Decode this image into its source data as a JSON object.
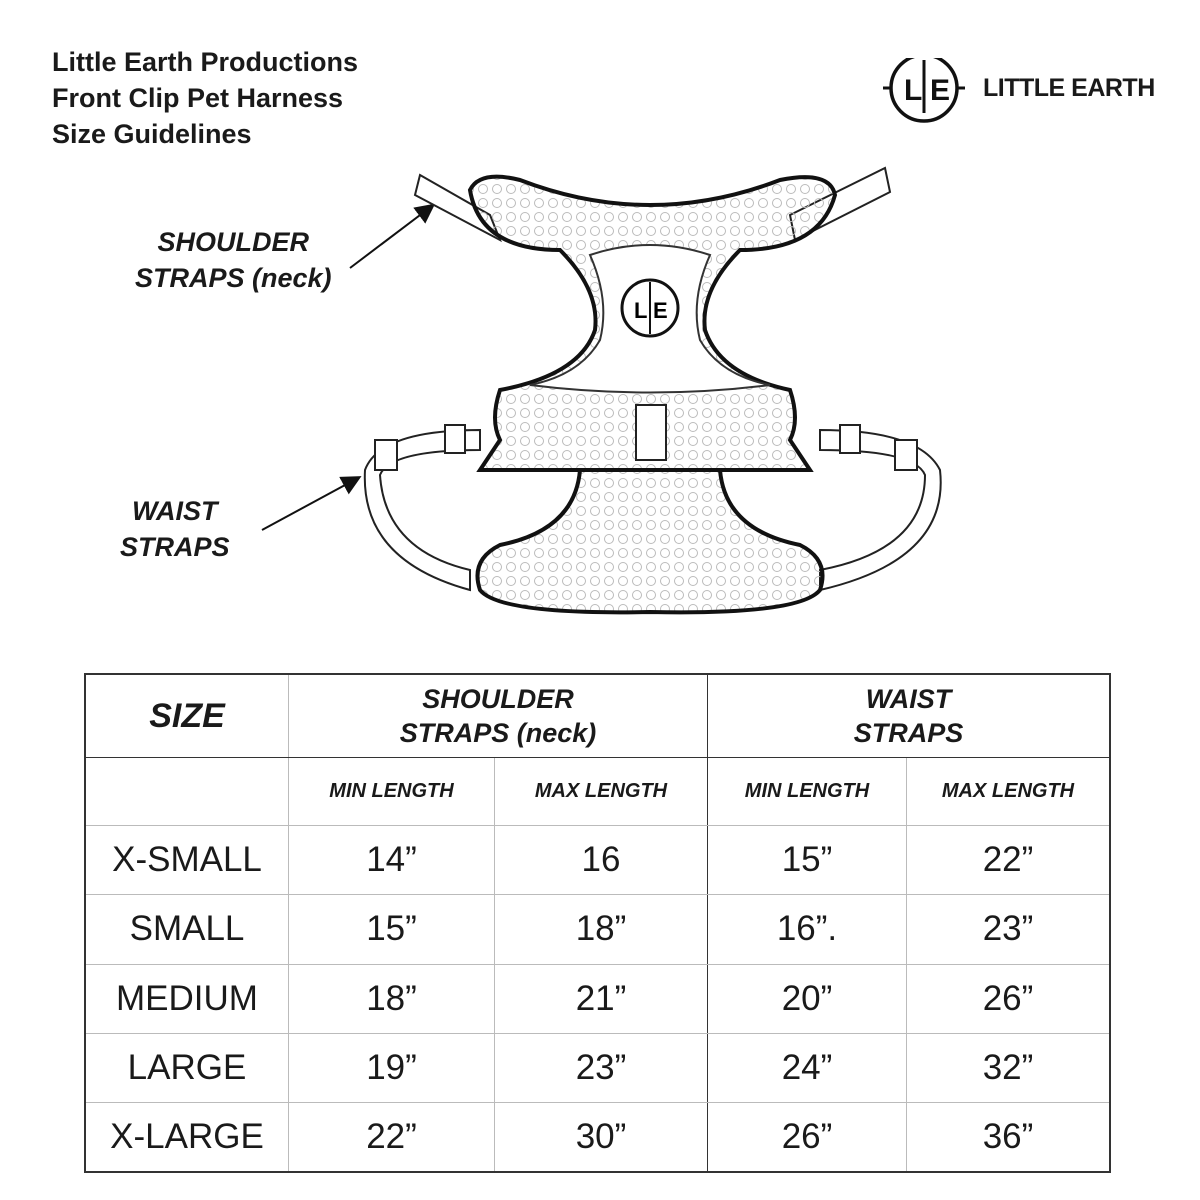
{
  "header": {
    "title_lines": [
      "Little Earth Productions",
      "Front Clip Pet Harness",
      "Size Guidelines"
    ],
    "brand": "LITTLE EARTH",
    "logo_letters": "L|E"
  },
  "diagram": {
    "callouts": {
      "shoulder": [
        "SHOULDER",
        "STRAPS (neck)"
      ],
      "waist": [
        "WAIST",
        "STRAPS"
      ]
    }
  },
  "table": {
    "size_header": "SIZE",
    "groups": [
      {
        "lines": [
          "SHOULDER",
          "STRAPS (neck)"
        ]
      },
      {
        "lines": [
          "WAIST",
          "STRAPS"
        ]
      }
    ],
    "subheaders": [
      "MIN LENGTH",
      "MAX LENGTH",
      "MIN LENGTH",
      "MAX LENGTH"
    ],
    "rows": [
      {
        "size": "X-SMALL",
        "values": [
          "14”",
          "16",
          "15”",
          "22”"
        ]
      },
      {
        "size": "SMALL",
        "values": [
          "15”",
          "18”",
          "16”.",
          "23”"
        ]
      },
      {
        "size": "MEDIUM",
        "values": [
          "18”",
          "21”",
          "20”",
          "26”"
        ]
      },
      {
        "size": "LARGE",
        "values": [
          "19”",
          "23”",
          "24”",
          "32”"
        ]
      },
      {
        "size": "X-LARGE",
        "values": [
          "22”",
          "30”",
          "26”",
          "36”"
        ]
      }
    ]
  }
}
